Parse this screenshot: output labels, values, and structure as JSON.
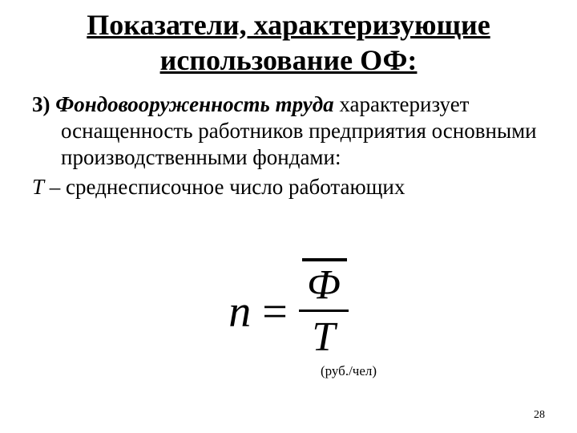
{
  "title": "Показатели, характеризующие использование ОФ:",
  "item_number": "3)",
  "term": "Фондовооруженность труда",
  "definition_rest": " характеризует оснащенность работников предприятия основными производственными фондами:",
  "t_symbol": "Т",
  "t_desc": " – среднесписочное число работающих",
  "formula": {
    "lhs": "n",
    "eq": "=",
    "numerator": "Ф",
    "denominator": "T",
    "unit": "(руб./чел)"
  },
  "page_number": "28",
  "styling": {
    "background_color": "#ffffff",
    "text_color": "#000000",
    "title_fontsize_pt": 27,
    "title_weight": "bold",
    "title_underline": true,
    "body_fontsize_pt": 20,
    "formula_fontsize_pt": 40,
    "unit_fontsize_pt": 13,
    "pagenum_fontsize_pt": 11,
    "font_family": "Times New Roman"
  }
}
